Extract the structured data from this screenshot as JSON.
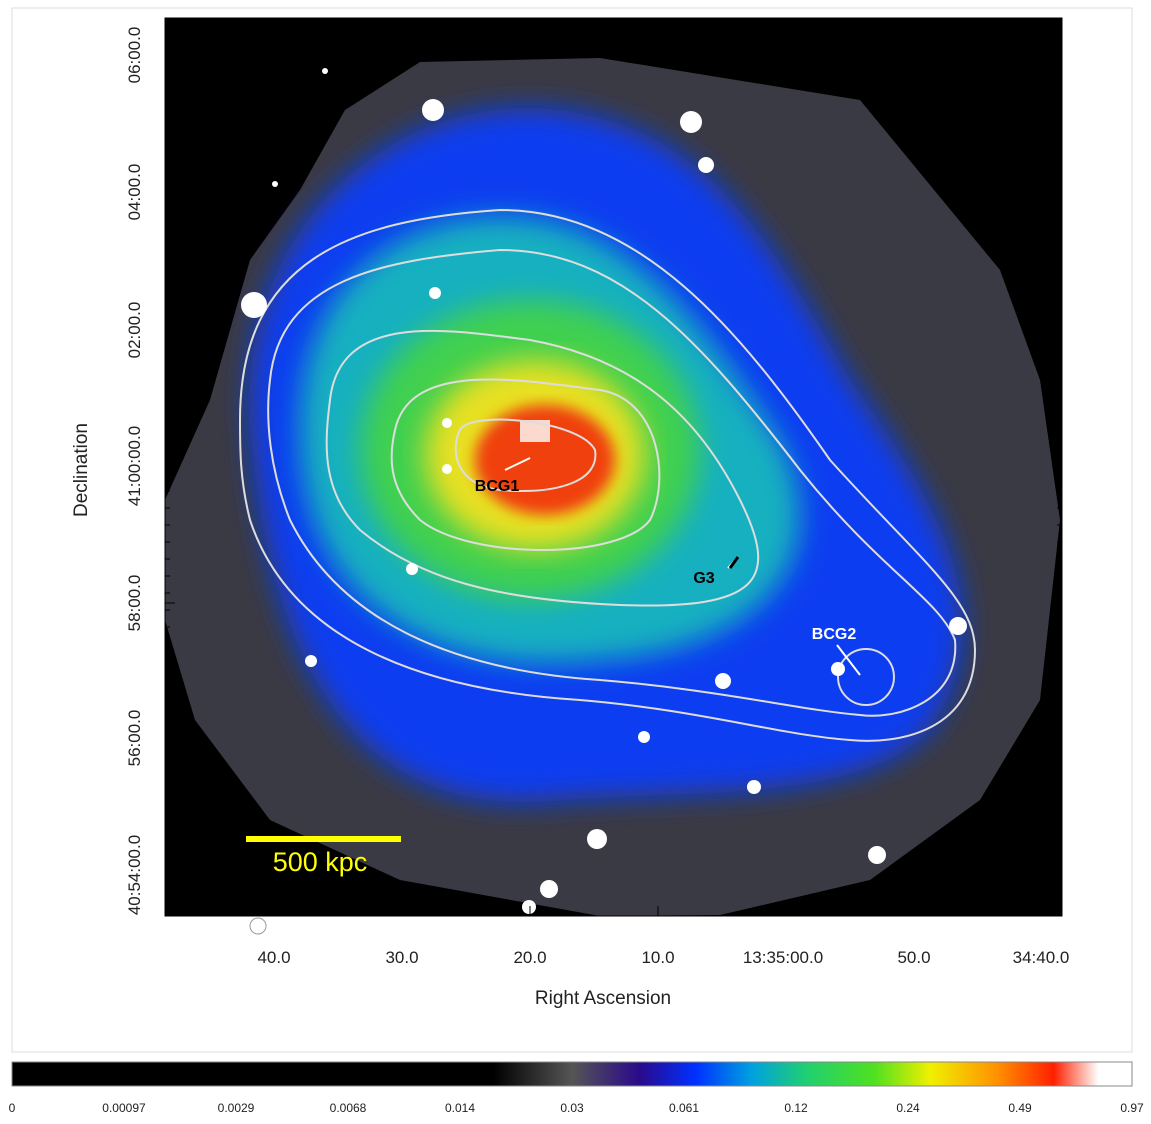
{
  "figure": {
    "x_axis_label": "Right Ascension",
    "y_axis_label": "Declination",
    "x_tick_labels": [
      "40.0",
      "30.0",
      "20.0",
      "10.0",
      "13:35:00.0",
      "50.0",
      "34:40.0"
    ],
    "y_tick_labels": [
      "06:00.0",
      "04:00.0",
      "02:00.0",
      "41:00:00.0",
      "58:00.0",
      "56:00.0",
      "40:54:00.0"
    ],
    "annotations": [
      "BCG1",
      "G3",
      "BCG2"
    ],
    "scale_bar": "500 kpc",
    "colorbar_labels": [
      "0",
      "0.00097",
      "0.0029",
      "0.0068",
      "0.014",
      "0.03",
      "0.061",
      "0.12",
      "0.24",
      "0.49",
      "0.97"
    ]
  }
}
